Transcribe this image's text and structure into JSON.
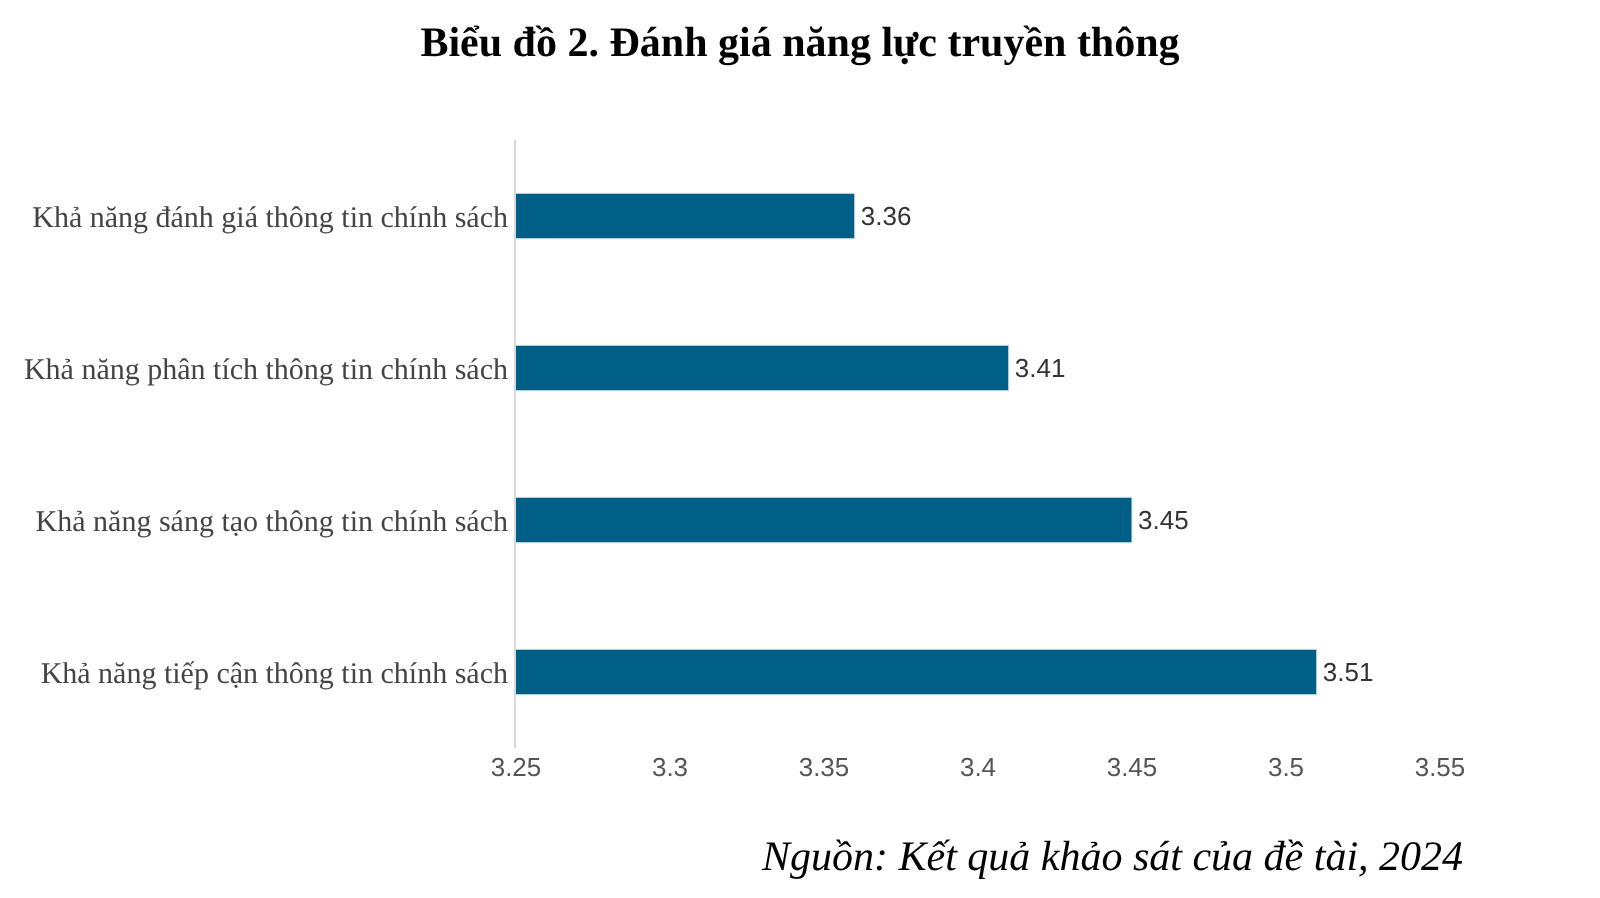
{
  "chart_data": {
    "type": "bar",
    "orientation": "horizontal",
    "title": "Biểu đồ 2. Đánh giá năng lực truyền thông",
    "categories": [
      "Khả năng đánh giá thông tin chính sách",
      "Khả năng phân tích thông tin chính sách",
      "Khả năng sáng tạo thông tin chính sách",
      "Khả năng tiếp cận thông tin chính sách"
    ],
    "values": [
      3.36,
      3.41,
      3.45,
      3.51
    ],
    "color": "#005f87",
    "xlim": [
      3.25,
      3.55
    ],
    "xticks": [
      3.25,
      3.3,
      3.35,
      3.4,
      3.45,
      3.5,
      3.55
    ],
    "data_labels": true,
    "annotations": [
      "Nguồn: Kết quả khảo sát của đề tài, 2024"
    ]
  }
}
